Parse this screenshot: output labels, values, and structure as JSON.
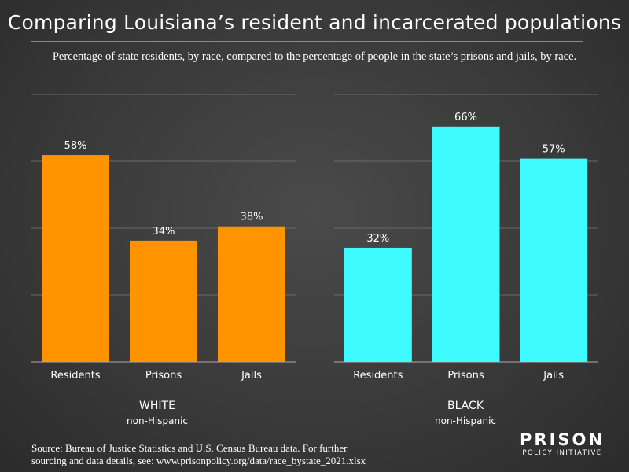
{
  "title": "Comparing Louisiana’s resident and incarcerated populations",
  "subtitle": "Percentage of state residents, by race, compared to the percentage of people in the state’s prisons and jails, by race.",
  "chart_data": [
    {
      "type": "bar",
      "title": "WHITE",
      "subtitle": "non-Hispanic",
      "categories": [
        "Residents",
        "Prisons",
        "Jails"
      ],
      "values": [
        58,
        34,
        38
      ],
      "value_labels": [
        "58%",
        "34%",
        "38%"
      ],
      "ylim": [
        0,
        75
      ],
      "grid": true,
      "color": "#FF9400"
    },
    {
      "type": "bar",
      "title": "BLACK",
      "subtitle": "non-Hispanic",
      "categories": [
        "Residents",
        "Prisons",
        "Jails"
      ],
      "values": [
        32,
        66,
        57
      ],
      "value_labels": [
        "32%",
        "66%",
        "57%"
      ],
      "ylim": [
        0,
        75
      ],
      "grid": true,
      "color": "#3DFBFF"
    }
  ],
  "source_line1": "Source: Bureau of Justice Statistics and U.S. Census Bureau data. For further",
  "source_line2": "sourcing and data details, see: www.prisonpolicy.org/data/race_bystate_2021.xlsx",
  "logo": {
    "main": "PRISON",
    "sub": "POLICY INITIATIVE"
  },
  "colors": {
    "grid": "#6a6a6a",
    "axis": "#aaaaaa"
  }
}
